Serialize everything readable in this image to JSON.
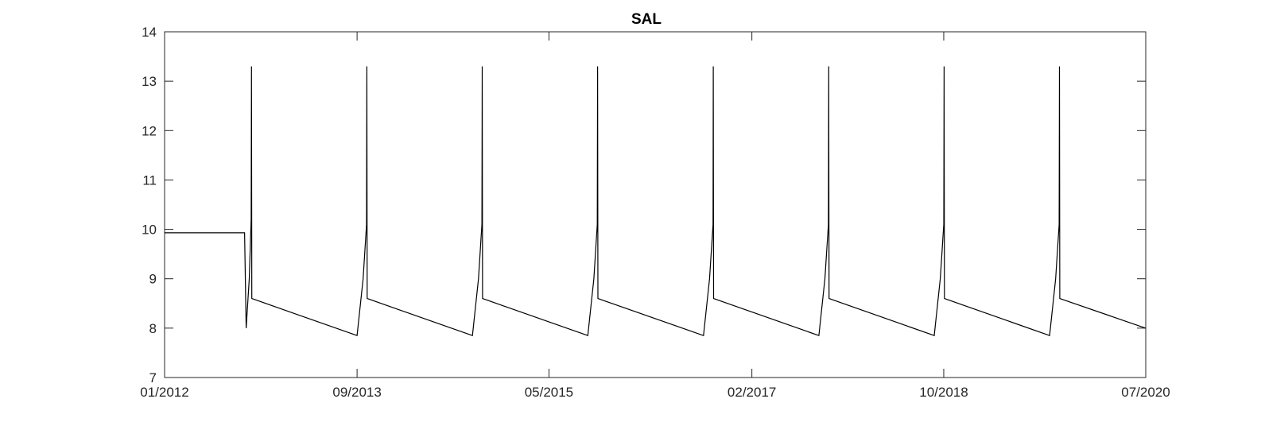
{
  "chart_data": {
    "type": "line",
    "title": "SAL",
    "xlabel": "",
    "ylabel": "",
    "xlim": [
      "2012-01-01",
      "2020-07-01"
    ],
    "ylim": [
      7,
      14
    ],
    "x_tick_labels": [
      "01/2012",
      "09/2013",
      "05/2015",
      "02/2017",
      "10/2018",
      "07/2020"
    ],
    "x_tick_dates": [
      "2012-01-01",
      "2013-09-01",
      "2015-05-01",
      "2017-02-01",
      "2018-10-01",
      "2020-07-01"
    ],
    "y_ticks": [
      7,
      8,
      9,
      10,
      11,
      12,
      13,
      14
    ],
    "grid": false,
    "line_color": "#000000",
    "series": [
      {
        "x": [
          "2012-01-01",
          "2012-09-10",
          "2012-09-15",
          "2012-09-25",
          "2012-10-01",
          "2012-10-02",
          "2012-10-03",
          "2013-09-01",
          "2013-09-20",
          "2013-10-01",
          "2013-10-02",
          "2013-10-03",
          "2014-09-01",
          "2014-09-20",
          "2014-10-01",
          "2014-10-02",
          "2014-10-03",
          "2015-09-01",
          "2015-09-20",
          "2015-10-01",
          "2015-10-02",
          "2015-10-03",
          "2016-09-01",
          "2016-09-20",
          "2016-10-01",
          "2016-10-02",
          "2016-10-03",
          "2017-09-01",
          "2017-09-20",
          "2017-10-01",
          "2017-10-02",
          "2017-10-03",
          "2018-09-01",
          "2018-09-20",
          "2018-10-01",
          "2018-10-02",
          "2018-10-03",
          "2019-09-01",
          "2019-09-20",
          "2019-10-01",
          "2019-10-02",
          "2019-10-03",
          "2020-07-01"
        ],
        "y": [
          9.93,
          9.93,
          8.0,
          9.0,
          10.2,
          13.3,
          8.6,
          7.85,
          9.0,
          10.1,
          13.3,
          8.6,
          7.85,
          9.0,
          10.1,
          13.3,
          8.6,
          7.85,
          9.0,
          10.1,
          13.3,
          8.6,
          7.85,
          9.0,
          10.1,
          13.3,
          8.6,
          7.85,
          9.0,
          10.1,
          13.3,
          8.6,
          7.85,
          9.0,
          10.1,
          13.3,
          8.6,
          7.85,
          9.0,
          10.1,
          13.3,
          8.6,
          8.0
        ]
      }
    ]
  }
}
